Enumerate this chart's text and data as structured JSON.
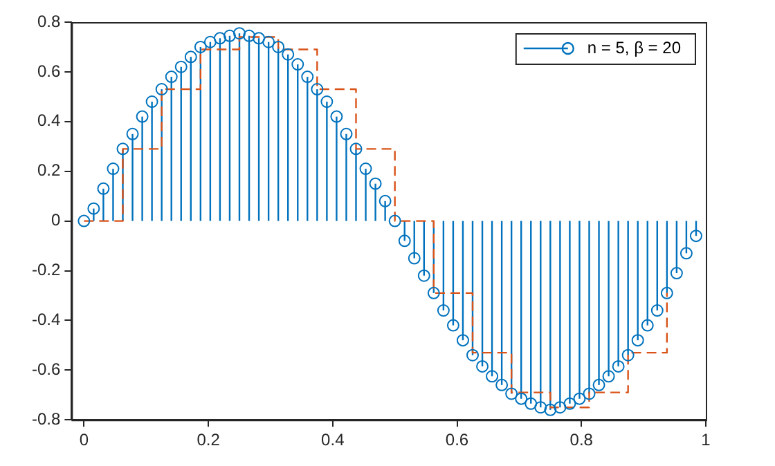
{
  "chart_data": {
    "type": "lollipop",
    "x": [
      0,
      0.015625,
      0.03125,
      0.046875,
      0.0625,
      0.078125,
      0.09375,
      0.109375,
      0.125,
      0.140625,
      0.15625,
      0.171875,
      0.1875,
      0.203125,
      0.21875,
      0.234375,
      0.25,
      0.265625,
      0.28125,
      0.296875,
      0.3125,
      0.328125,
      0.34375,
      0.359375,
      0.375,
      0.390625,
      0.40625,
      0.421875,
      0.4375,
      0.453125,
      0.46875,
      0.484375,
      0.5,
      0.515625,
      0.53125,
      0.546875,
      0.5625,
      0.578125,
      0.59375,
      0.609375,
      0.625,
      0.640625,
      0.65625,
      0.671875,
      0.6875,
      0.703125,
      0.71875,
      0.734375,
      0.75,
      0.765625,
      0.78125,
      0.796875,
      0.8125,
      0.828125,
      0.84375,
      0.859375,
      0.875,
      0.890625,
      0.90625,
      0.921875,
      0.9375,
      0.953125,
      0.96875,
      0.984375
    ],
    "series": [
      {
        "name": "n = 5, β = 20",
        "color": "#0072bd",
        "marker": "circle",
        "values": [
          0,
          0.05,
          0.13,
          0.21,
          0.29,
          0.35,
          0.42,
          0.48,
          0.53,
          0.58,
          0.62,
          0.66,
          0.7,
          0.72,
          0.735,
          0.745,
          0.755,
          0.745,
          0.735,
          0.72,
          0.7,
          0.67,
          0.63,
          0.58,
          0.53,
          0.48,
          0.42,
          0.35,
          0.29,
          0.21,
          0.15,
          0.08,
          0,
          -0.08,
          -0.15,
          -0.22,
          -0.29,
          -0.36,
          -0.42,
          -0.48,
          -0.54,
          -0.585,
          -0.625,
          -0.66,
          -0.695,
          -0.715,
          -0.735,
          -0.75,
          -0.76,
          -0.75,
          -0.735,
          -0.715,
          -0.695,
          -0.66,
          -0.625,
          -0.585,
          -0.54,
          -0.48,
          -0.42,
          -0.36,
          -0.29,
          -0.21,
          -0.13,
          -0.06
        ]
      },
      {
        "type": "step",
        "color": "#d95319",
        "line_style": "dashed",
        "marker": "none",
        "x": [
          0,
          0.0625,
          0.125,
          0.1875,
          0.25,
          0.3125,
          0.375,
          0.4375,
          0.5,
          0.5625,
          0.625,
          0.6875,
          0.75,
          0.8125,
          0.875,
          0.9375
        ],
        "values": [
          0,
          0.29,
          0.53,
          0.69,
          0.74,
          0.69,
          0.53,
          0.29,
          0,
          -0.29,
          -0.53,
          -0.69,
          -0.75,
          -0.69,
          -0.53,
          -0.29
        ]
      }
    ],
    "xlim": [
      -0.02,
      1
    ],
    "xticks": [
      0,
      0.2,
      0.4,
      0.6,
      0.8,
      1
    ],
    "ylim": [
      -0.8,
      0.8
    ],
    "yticks": [
      -0.8,
      -0.6,
      -0.4,
      -0.2,
      0,
      0.2,
      0.4,
      0.6,
      0.8
    ],
    "grid": false,
    "legend": "top right"
  }
}
